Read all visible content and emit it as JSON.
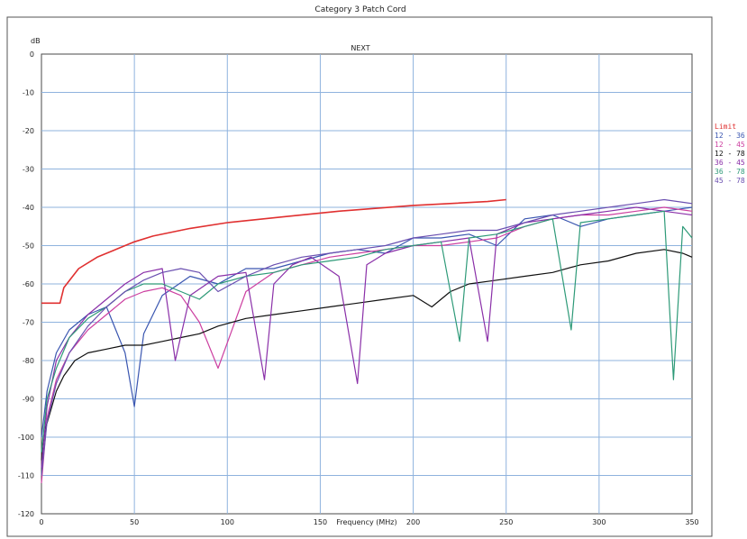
{
  "page": {
    "title": "Category 3 Patch Cord"
  },
  "chart_data": {
    "type": "line",
    "title": "NEXT",
    "xlabel": "Frequency (MHz)",
    "ylabel": "dB",
    "xlim": [
      0,
      350
    ],
    "ylim": [
      -120,
      0
    ],
    "y_ticks": [
      0,
      -10,
      -20,
      -30,
      -40,
      -50,
      -60,
      -70,
      -80,
      -90,
      -100,
      -110,
      -120
    ],
    "y_tick_labels": [
      "0",
      "-10",
      "-20",
      "-30",
      "-40",
      "-50",
      "-60",
      "-70",
      "-80",
      "-90",
      "-100",
      "-110",
      "-120"
    ],
    "x_ticks": [
      0,
      50,
      100,
      150,
      200,
      250,
      300,
      350
    ],
    "x_tick_labels": [
      "0",
      "50",
      "100",
      "150",
      "200",
      "250",
      "300",
      "350"
    ],
    "grid": true,
    "legend_position": "right",
    "series": [
      {
        "name": "Limit",
        "color": "#e03030",
        "x": [
          0,
          10,
          12,
          20,
          30,
          40,
          50,
          60,
          80,
          100,
          130,
          160,
          200,
          240,
          250
        ],
        "y": [
          -65,
          -65,
          -61,
          -56,
          -53,
          -51,
          -49,
          -47.5,
          -45.5,
          -44,
          -42.5,
          -41,
          -39.5,
          -38.5,
          -38
        ]
      },
      {
        "name": "12 - 36",
        "color": "#3a56b0",
        "x": [
          0,
          3,
          8,
          15,
          25,
          35,
          45,
          50,
          55,
          65,
          80,
          95,
          110,
          125,
          140,
          155,
          170,
          185,
          200,
          215,
          230,
          245,
          260,
          275,
          290,
          305,
          320,
          335,
          350
        ],
        "y": [
          -100,
          -88,
          -78,
          -72,
          -68,
          -66,
          -78,
          -92,
          -73,
          -63,
          -58,
          -60,
          -56,
          -56,
          -54,
          -52,
          -51,
          -52,
          -48,
          -48,
          -47,
          -50,
          -43,
          -42,
          -45,
          -43,
          -42,
          -41,
          -40
        ]
      },
      {
        "name": "12 - 45",
        "color": "#cc3fa0",
        "x": [
          0,
          3,
          8,
          15,
          25,
          35,
          45,
          55,
          65,
          75,
          85,
          95,
          110,
          125,
          140,
          155,
          170,
          185,
          200,
          215,
          230,
          245,
          260,
          275,
          290,
          305,
          320,
          335,
          350
        ],
        "y": [
          -112,
          -95,
          -85,
          -78,
          -72,
          -68,
          -64,
          -62,
          -61,
          -63,
          -70,
          -82,
          -62,
          -57,
          -55,
          -53,
          -52,
          -51,
          -50,
          -50,
          -49,
          -48,
          -45,
          -43,
          -42,
          -42,
          -41,
          -40,
          -41
        ]
      },
      {
        "name": "12 - 78",
        "color": "#101010",
        "x": [
          0,
          2,
          5,
          8,
          12,
          18,
          25,
          35,
          45,
          55,
          65,
          75,
          85,
          95,
          110,
          125,
          140,
          155,
          170,
          185,
          200,
          210,
          220,
          230,
          245,
          260,
          275,
          290,
          305,
          320,
          335,
          345,
          350
        ],
        "y": [
          -106,
          -98,
          -93,
          -88,
          -84,
          -80,
          -78,
          -77,
          -76,
          -76,
          -75,
          -74,
          -73,
          -71,
          -69,
          -68,
          -67,
          -66,
          -65,
          -64,
          -63,
          -66,
          -62,
          -60,
          -59,
          -58,
          -57,
          -55,
          -54,
          -52,
          -51,
          -52,
          -53
        ]
      },
      {
        "name": "36 - 45",
        "color": "#8a2fa8",
        "x": [
          0,
          3,
          8,
          15,
          25,
          35,
          45,
          55,
          65,
          72,
          80,
          95,
          110,
          120,
          125,
          135,
          145,
          160,
          170,
          175,
          185,
          200,
          215,
          230,
          240,
          245,
          260,
          275,
          290,
          305,
          320,
          335,
          350
        ],
        "y": [
          -108,
          -92,
          -80,
          -74,
          -68,
          -64,
          -60,
          -57,
          -56,
          -80,
          -63,
          -58,
          -57,
          -85,
          -60,
          -55,
          -53,
          -58,
          -86,
          -55,
          -52,
          -50,
          -49,
          -48,
          -75,
          -47,
          -44,
          -43,
          -42,
          -41,
          -40,
          -41,
          -42
        ]
      },
      {
        "name": "36 - 78",
        "color": "#2e9a78",
        "x": [
          0,
          3,
          8,
          15,
          25,
          35,
          45,
          55,
          65,
          75,
          85,
          95,
          110,
          125,
          140,
          155,
          170,
          185,
          200,
          215,
          225,
          230,
          245,
          260,
          275,
          285,
          290,
          305,
          320,
          335,
          340,
          345,
          350
        ],
        "y": [
          -104,
          -90,
          -82,
          -74,
          -69,
          -66,
          -62,
          -60,
          -60,
          -62,
          -64,
          -60,
          -58,
          -57,
          -55,
          -54,
          -53,
          -51,
          -50,
          -49,
          -75,
          -48,
          -47,
          -45,
          -43,
          -72,
          -44,
          -43,
          -42,
          -41,
          -85,
          -45,
          -48
        ]
      },
      {
        "name": "45 - 78",
        "color": "#6a4fb0",
        "x": [
          0,
          3,
          8,
          15,
          25,
          35,
          45,
          55,
          65,
          75,
          85,
          95,
          110,
          125,
          140,
          155,
          170,
          185,
          200,
          215,
          230,
          245,
          260,
          275,
          290,
          305,
          320,
          335,
          350
        ],
        "y": [
          -110,
          -96,
          -86,
          -78,
          -71,
          -66,
          -62,
          -59,
          -57,
          -56,
          -57,
          -62,
          -58,
          -55,
          -53,
          -52,
          -51,
          -50,
          -48,
          -47,
          -46,
          -46,
          -44,
          -42,
          -41,
          -40,
          -39,
          -38,
          -39
        ]
      }
    ]
  }
}
